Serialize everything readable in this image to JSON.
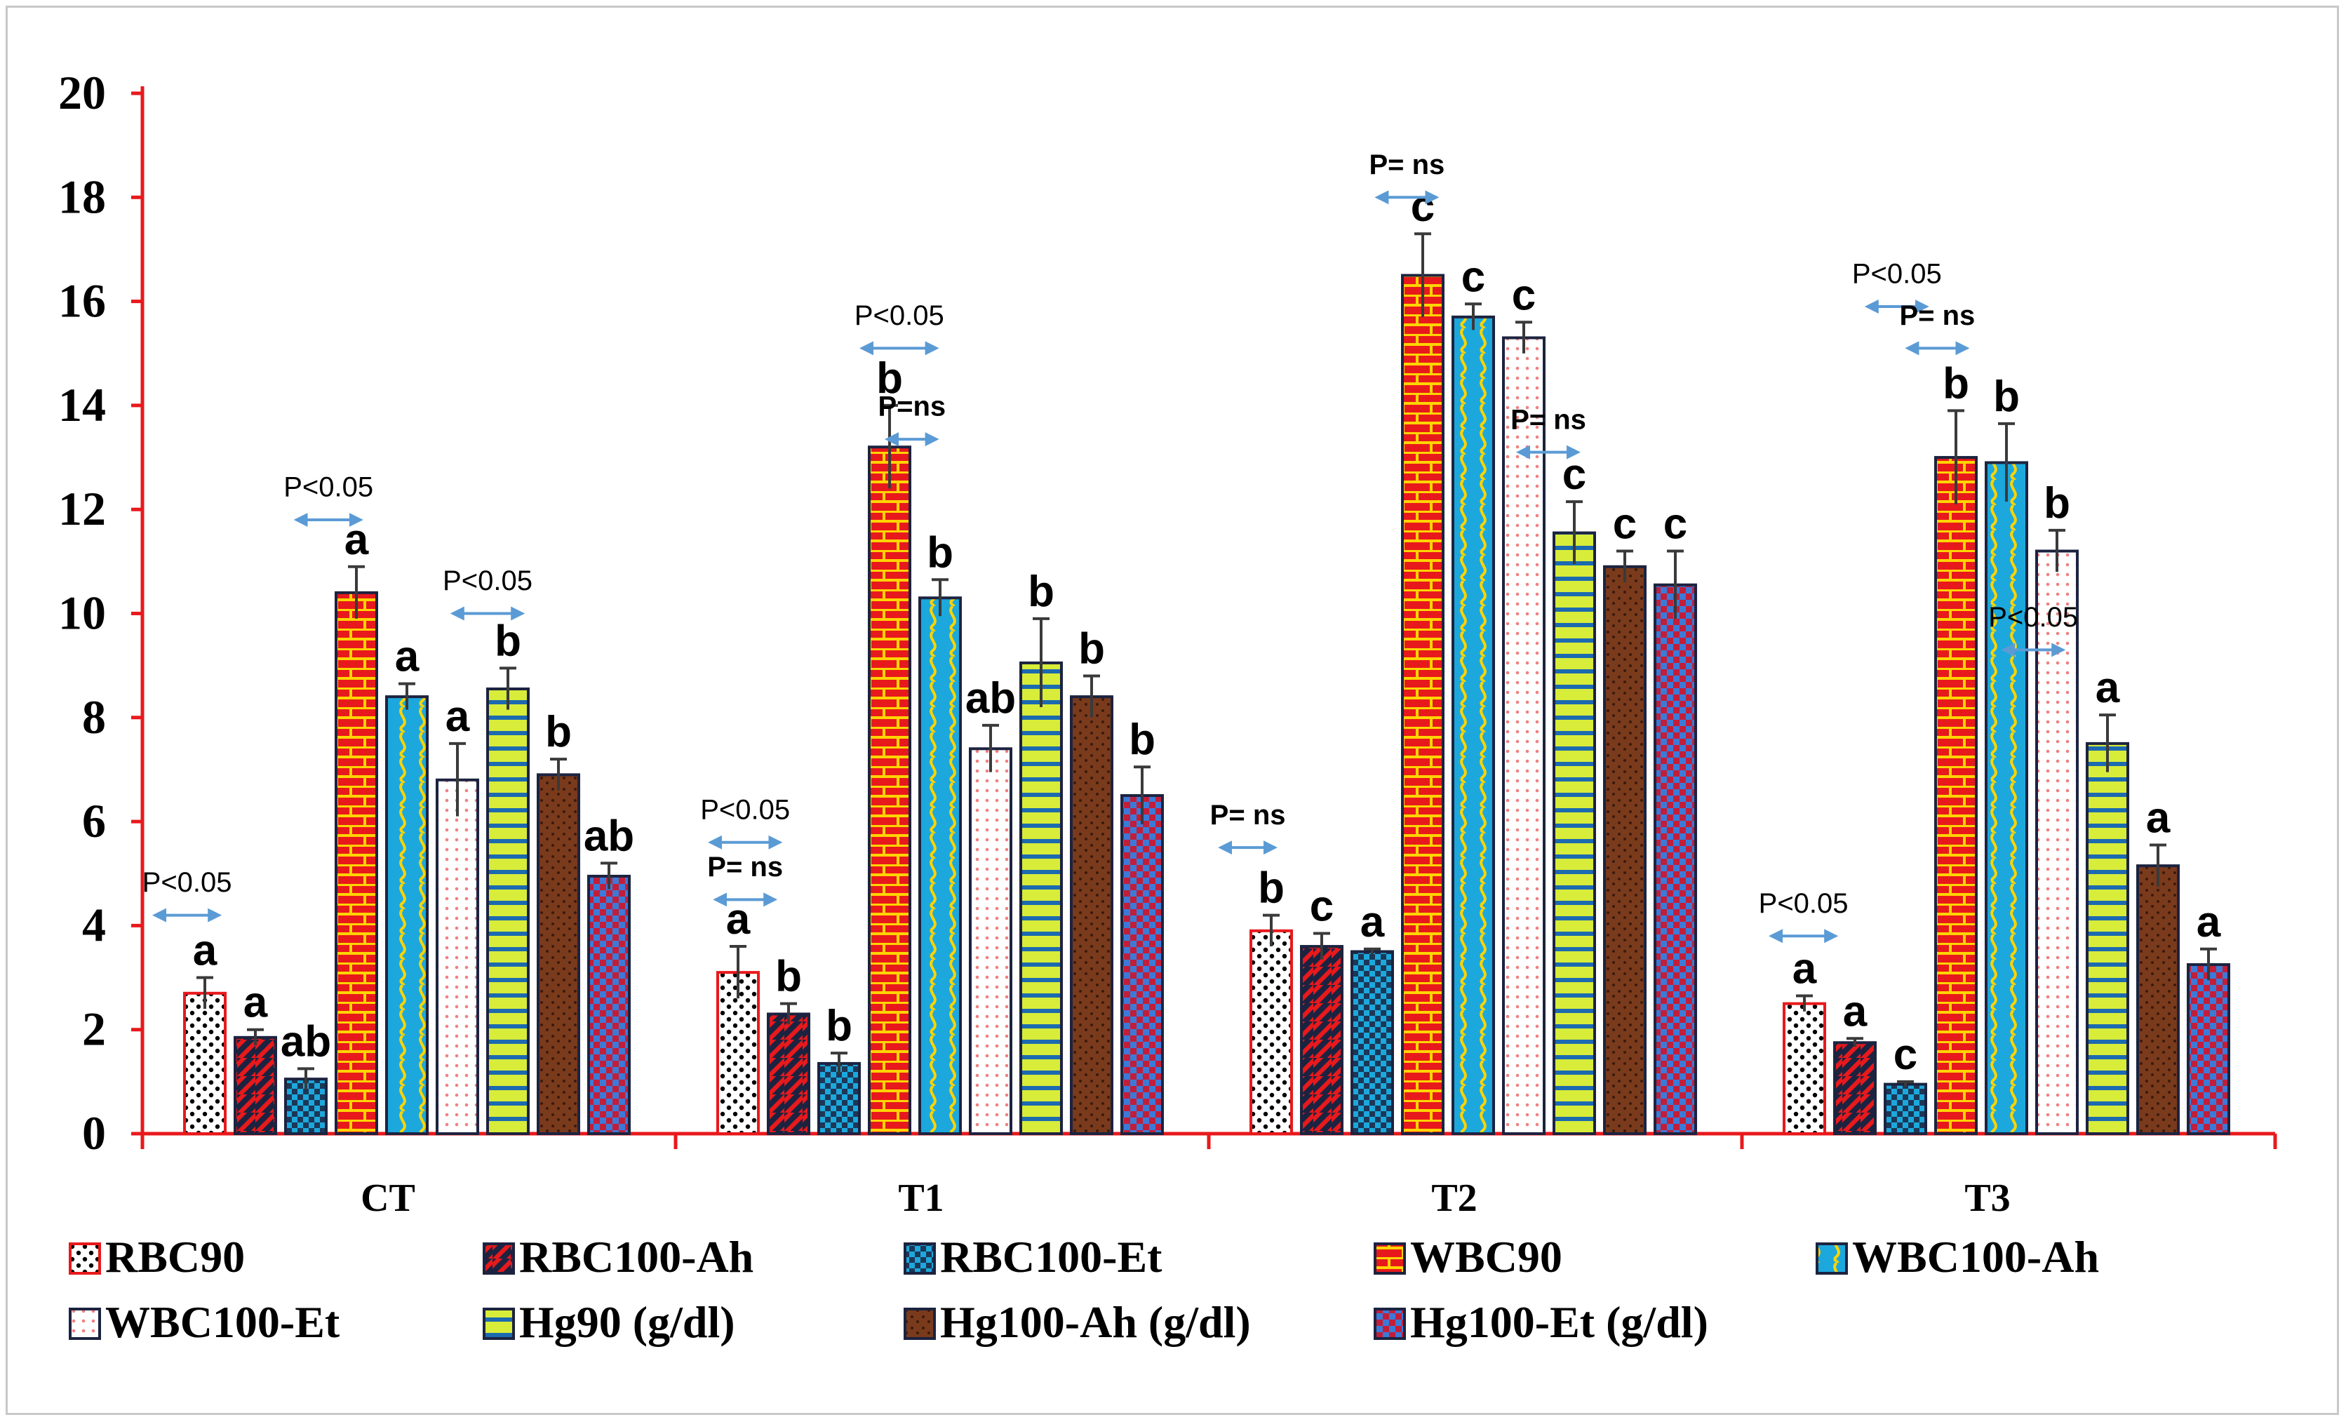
{
  "chart_data": {
    "type": "bar",
    "categories": [
      "CT",
      "T1",
      "T2",
      "T3"
    ],
    "ylim": [
      0,
      20
    ],
    "yticks": [
      0,
      2,
      4,
      6,
      8,
      10,
      12,
      14,
      16,
      18,
      20
    ],
    "series": [
      {
        "name": "RBC90",
        "values": [
          2.7,
          3.1,
          3.9,
          2.5
        ],
        "errors": [
          0.3,
          0.5,
          0.3,
          0.15
        ],
        "pattern": "dots",
        "fill": "#ffffff",
        "fg": "#000000",
        "border": "#e8191c"
      },
      {
        "name": "RBC100-Ah",
        "values": [
          1.85,
          2.3,
          3.6,
          1.75
        ],
        "errors": [
          0.15,
          0.2,
          0.25,
          0.08
        ],
        "pattern": "diag",
        "fill": "#e8191c",
        "fg": "#1c2340",
        "border": "#1c2340"
      },
      {
        "name": "RBC100-Et",
        "values": [
          1.05,
          1.35,
          3.5,
          0.95
        ],
        "errors": [
          0.2,
          0.2,
          0.05,
          0.05
        ],
        "pattern": "check",
        "fill": "#1ca8dc",
        "fg": "#1c2340",
        "border": "#1c2340"
      },
      {
        "name": "WBC90",
        "values": [
          10.4,
          13.2,
          16.5,
          13.0
        ],
        "errors": [
          0.5,
          0.8,
          0.8,
          0.9
        ],
        "pattern": "brick",
        "fill": "#e8191c",
        "fg": "#ffd400",
        "border": "#1c2340"
      },
      {
        "name": "WBC100-Ah",
        "values": [
          8.4,
          10.3,
          15.7,
          12.9
        ],
        "errors": [
          0.25,
          0.35,
          0.25,
          0.75
        ],
        "pattern": "wave",
        "fill": "#1ca8dc",
        "fg": "#ffd400",
        "border": "#1c2340"
      },
      {
        "name": "WBC100-Et",
        "values": [
          6.8,
          7.4,
          15.3,
          11.2
        ],
        "errors": [
          0.7,
          0.45,
          0.3,
          0.4
        ],
        "pattern": "dotgrid",
        "fill": "#ffffff",
        "fg": "#f08080",
        "border": "#1c2340"
      },
      {
        "name": "Hg90 (g/dl)",
        "values": [
          8.55,
          9.05,
          11.55,
          7.5
        ],
        "errors": [
          0.4,
          0.85,
          0.6,
          0.55
        ],
        "pattern": "hstripe",
        "fill": "#d8ec3a",
        "fg": "#1c6ab0",
        "border": "#1c2340"
      },
      {
        "name": "Hg100-Ah (g/dl)",
        "values": [
          6.9,
          8.4,
          10.9,
          5.15
        ],
        "errors": [
          0.3,
          0.4,
          0.3,
          0.4
        ],
        "pattern": "speck",
        "fill": "#7a3a1c",
        "fg": "#3a1a0c",
        "border": "#1c2340"
      },
      {
        "name": "Hg100-Et (g/dl)",
        "values": [
          4.95,
          6.5,
          10.55,
          3.25
        ],
        "errors": [
          0.25,
          0.55,
          0.65,
          0.3
        ],
        "pattern": "check2",
        "fill": "#c21e3a",
        "fg": "#3c7ad8",
        "border": "#1c2340"
      }
    ],
    "significance_letters": [
      [
        "a",
        "a",
        "ab",
        "a",
        "a",
        "a",
        "b",
        "b",
        "ab"
      ],
      [
        "a",
        "b",
        "b",
        "b",
        "b",
        "ab",
        "b",
        "b",
        "b"
      ],
      [
        "b",
        "c",
        "a",
        "c",
        "c",
        "c",
        "c",
        "c",
        "c"
      ],
      [
        "a",
        "a",
        "c",
        "b",
        "b",
        "b",
        "a",
        "a",
        "a"
      ]
    ],
    "annotations": [
      {
        "text": "P<0.05",
        "x_from": -0.5,
        "x_to": 0.6,
        "y": 4.2,
        "text_y": 4.65,
        "bold": false
      },
      {
        "text": "P<0.05",
        "x_from": 2.3,
        "x_to": 3.4,
        "y": 11.8,
        "text_y": 12.25,
        "bold": false
      },
      {
        "text": "P<0.05",
        "x_from": 5.4,
        "x_to": 6.6,
        "y": 10.0,
        "text_y": 10.45,
        "bold": false
      },
      {
        "text": "P<0.05",
        "x_from": 10.5,
        "x_to": 11.7,
        "y": 5.6,
        "text_y": 6.05,
        "bold": false
      },
      {
        "text": "P= ns",
        "x_from": 10.6,
        "x_to": 11.6,
        "y": 4.5,
        "text_y": 4.95,
        "bold": true
      },
      {
        "text": "P<0.05",
        "x_from": 13.5,
        "x_to": 14.8,
        "y": 15.1,
        "text_y": 15.55,
        "bold": false
      },
      {
        "text": "P=ns",
        "x_from": 14.0,
        "x_to": 14.8,
        "y": 13.35,
        "text_y": 13.8,
        "bold": true
      },
      {
        "text": "P= ns",
        "x_from": 20.6,
        "x_to": 21.5,
        "y": 5.5,
        "text_y": 5.95,
        "bold": true
      },
      {
        "text": "P= ns",
        "x_from": 23.7,
        "x_to": 24.7,
        "y": 18.0,
        "text_y": 18.45,
        "bold": true
      },
      {
        "text": "P= ns",
        "x_from": 26.5,
        "x_to": 27.5,
        "y": 13.1,
        "text_y": 13.55,
        "bold": true
      },
      {
        "text": "P<0.05",
        "x_from": 31.5,
        "x_to": 32.6,
        "y": 3.8,
        "text_y": 4.25,
        "bold": false
      },
      {
        "text": "P<0.05",
        "x_from": 33.4,
        "x_to": 34.4,
        "y": 15.9,
        "text_y": 16.35,
        "bold": false
      },
      {
        "text": "P= ns",
        "x_from": 34.2,
        "x_to": 35.2,
        "y": 15.1,
        "text_y": 15.55,
        "bold": true
      },
      {
        "text": "P<0.05",
        "x_from": 36.1,
        "x_to": 37.1,
        "y": 9.3,
        "text_y": 9.75,
        "bold": false
      }
    ]
  }
}
